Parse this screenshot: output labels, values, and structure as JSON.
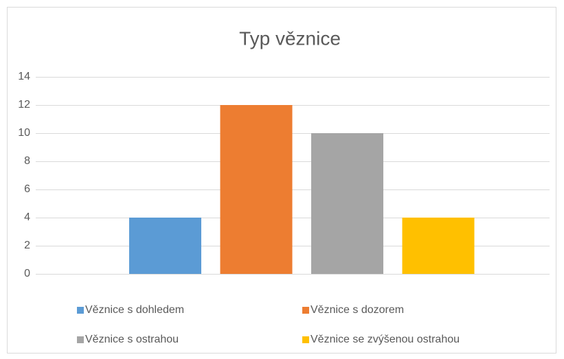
{
  "chart_data": {
    "type": "bar",
    "title": "Typ věznice",
    "categories": [
      null
    ],
    "series": [
      {
        "name": "Věznice s dohledem",
        "color": "#5b9bd5",
        "values": [
          4
        ]
      },
      {
        "name": "Věznice s dozorem",
        "color": "#ed7d31",
        "values": [
          12
        ]
      },
      {
        "name": "Věznice s ostrahou",
        "color": "#a5a5a5",
        "values": [
          10
        ]
      },
      {
        "name": "Věznice se zvýšenou ostrahou",
        "color": "#ffc000",
        "values": [
          4
        ]
      }
    ],
    "ylim": [
      0,
      14
    ],
    "yticks": [
      0,
      2,
      4,
      6,
      8,
      10,
      12,
      14
    ],
    "grid": true,
    "legend": "bottom"
  }
}
